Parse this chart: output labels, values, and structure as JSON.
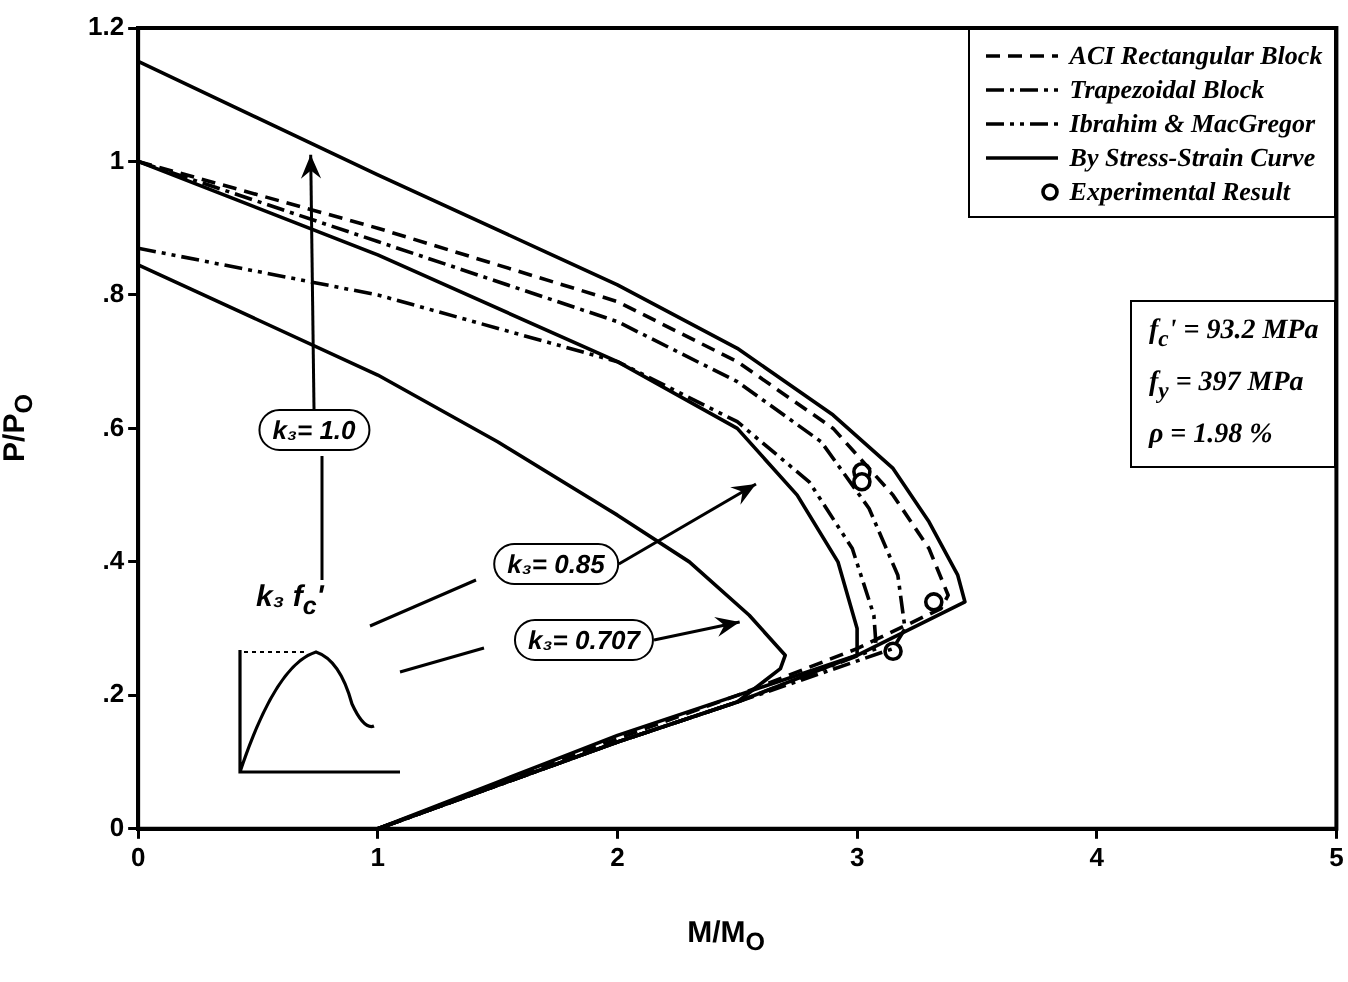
{
  "chart_data": {
    "type": "line",
    "xlabel": "M/M$_{O}$",
    "ylabel": "P/P$_{O}$",
    "xlim": [
      0,
      5
    ],
    "xticks": [
      0,
      1,
      2,
      3,
      4,
      5
    ],
    "ylim": [
      0,
      1.2
    ],
    "yticks": [
      0,
      {
        "value": 0.2,
        "label": ".2"
      },
      {
        "value": 0.4,
        "label": ".4"
      },
      {
        "value": 0.6,
        "label": ".6"
      },
      {
        "value": 0.8,
        "label": ".8"
      },
      1,
      1.2
    ],
    "grid": false,
    "legend": "top right",
    "series": [
      {
        "name": "ACI Rectangular Block",
        "color": "#000000",
        "line_style": "dashed",
        "x": [
          0,
          1,
          2,
          2.5,
          2.9,
          3.15,
          3.3,
          3.38,
          3.35,
          3.0,
          2.5,
          2,
          1.5,
          1
        ],
        "values": [
          1.0,
          0.9,
          0.79,
          0.7,
          0.6,
          0.5,
          0.42,
          0.35,
          0.33,
          0.27,
          0.2,
          0.135,
          0.068,
          0
        ]
      },
      {
        "name": "Trapezoidal Block",
        "color": "#000000",
        "line_style": "dashdot",
        "x": [
          0,
          1,
          2,
          2.5,
          2.85,
          3.05,
          3.17,
          3.2,
          3.15,
          2.5,
          2,
          1.5,
          1
        ],
        "values": [
          1.0,
          0.88,
          0.76,
          0.67,
          0.58,
          0.48,
          0.38,
          0.3,
          0.27,
          0.19,
          0.13,
          0.065,
          0
        ]
      },
      {
        "name": "Ibrahim & MacGregor",
        "color": "#000000",
        "line_style": "dashdotdot",
        "x": [
          0,
          1,
          2,
          2.5,
          2.8,
          2.98,
          3.07,
          3.08,
          2.5,
          2,
          1.5,
          1
        ],
        "values": [
          0.87,
          0.8,
          0.7,
          0.61,
          0.52,
          0.42,
          0.32,
          0.27,
          0.19,
          0.13,
          0.065,
          0
        ]
      },
      {
        "name": "By Stress-Strain Curve",
        "color": "#000000",
        "line_style": "solid",
        "x": [
          0,
          1,
          2,
          2.5,
          2.9,
          3.15,
          3.3,
          3.42,
          3.45,
          3.0,
          2.5,
          2,
          1.5,
          1
        ],
        "values": [
          1.15,
          0.98,
          0.815,
          0.72,
          0.62,
          0.54,
          0.46,
          0.38,
          0.34,
          0.26,
          0.2,
          0.14,
          0.07,
          0
        ]
      },
      {
        "color": "#000000",
        "line_style": "solid",
        "x": [
          0,
          1,
          2,
          2.5,
          2.75,
          2.92,
          3.0,
          3.0,
          2.5,
          2,
          1.5,
          1
        ],
        "values": [
          1.0,
          0.86,
          0.7,
          0.6,
          0.5,
          0.4,
          0.3,
          0.26,
          0.19,
          0.13,
          0.065,
          0
        ]
      },
      {
        "color": "#000000",
        "line_style": "solid",
        "x": [
          0,
          1,
          1.5,
          2,
          2.3,
          2.55,
          2.7,
          2.68,
          2.5,
          2,
          1.5,
          1
        ],
        "values": [
          0.845,
          0.68,
          0.58,
          0.47,
          0.4,
          0.32,
          0.26,
          0.24,
          0.19,
          0.13,
          0.065,
          0
        ]
      },
      {
        "name": "Experimental Result",
        "type": "scatter",
        "marker": "circle",
        "color": "#000000",
        "x": [
          3.02,
          3.02,
          3.32,
          3.15
        ],
        "values": [
          0.535,
          0.52,
          0.34,
          0.266
        ]
      }
    ],
    "annotations": [
      {
        "text": "k₃= 1.0",
        "x": 0.72,
        "y": 1.01
      },
      "k₃= 0.85",
      {
        "text": "k₃= 0.707",
        "x": 2.51,
        "y": 0.31
      },
      "k₃ f$_{c}$'",
      "f$_{c}$' = 93.2 MPa",
      "f$_{y}$ = 397 MPa",
      "ρ = 1.98 %"
    ]
  }
}
